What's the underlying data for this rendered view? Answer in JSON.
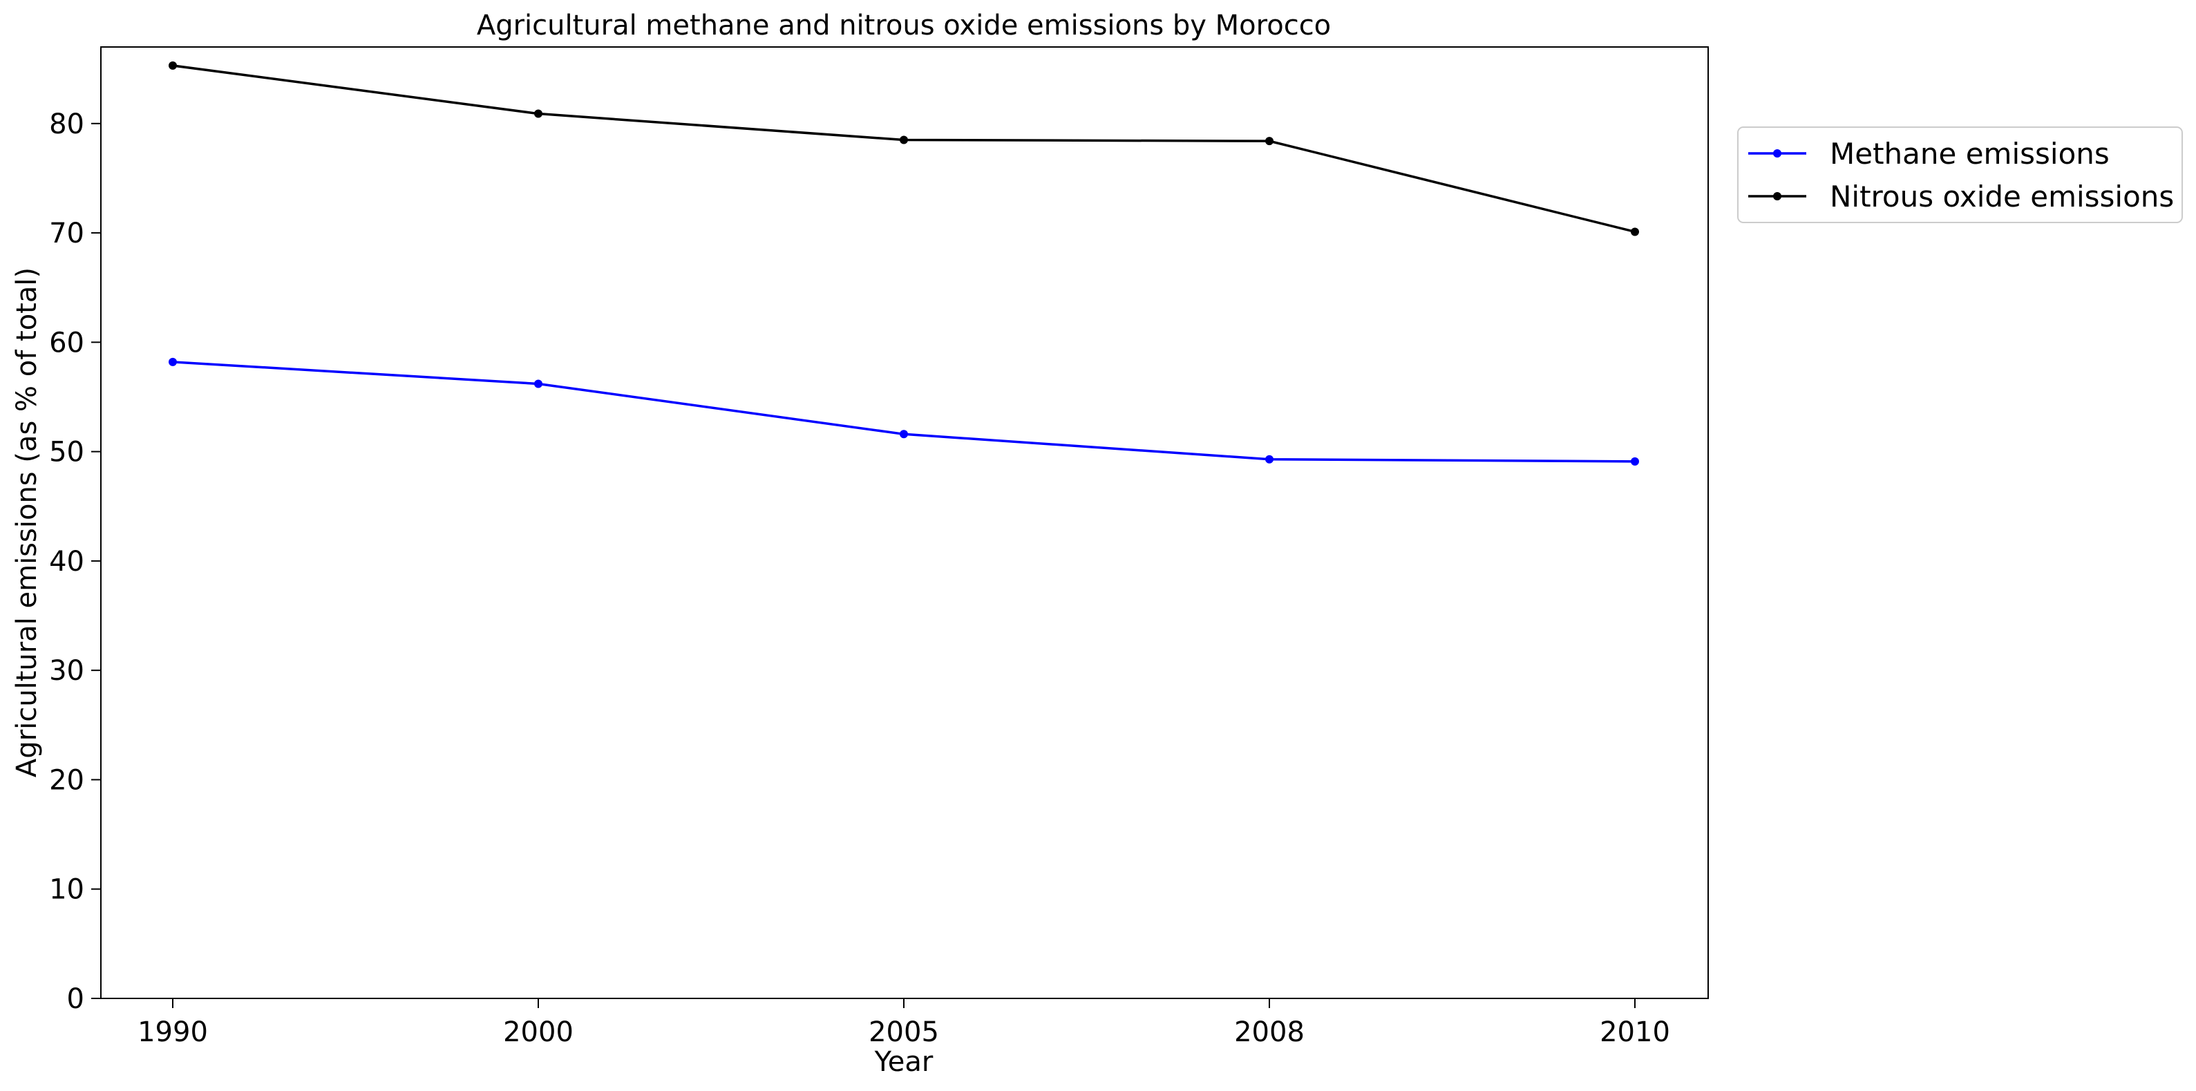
{
  "chart_data": {
    "type": "line",
    "title": "Agricultural methane and nitrous oxide emissions by Morocco",
    "xlabel": "Year",
    "ylabel": "Agricultural emissions (as % of total)",
    "categories": [
      "1990",
      "2000",
      "2005",
      "2008",
      "2010"
    ],
    "ylim": [
      0,
      87
    ],
    "yticks": [
      0,
      10,
      20,
      30,
      40,
      50,
      60,
      70,
      80
    ],
    "grid": false,
    "legend_position": "outside-top-right",
    "series": [
      {
        "name": "Methane emissions",
        "color": "#0000ff",
        "marker": "circle",
        "values": [
          58.2,
          56.2,
          51.6,
          49.3,
          49.1
        ]
      },
      {
        "name": "Nitrous oxide emissions",
        "color": "#000000",
        "marker": "circle",
        "values": [
          85.3,
          80.9,
          78.5,
          78.4,
          70.1
        ]
      }
    ]
  }
}
